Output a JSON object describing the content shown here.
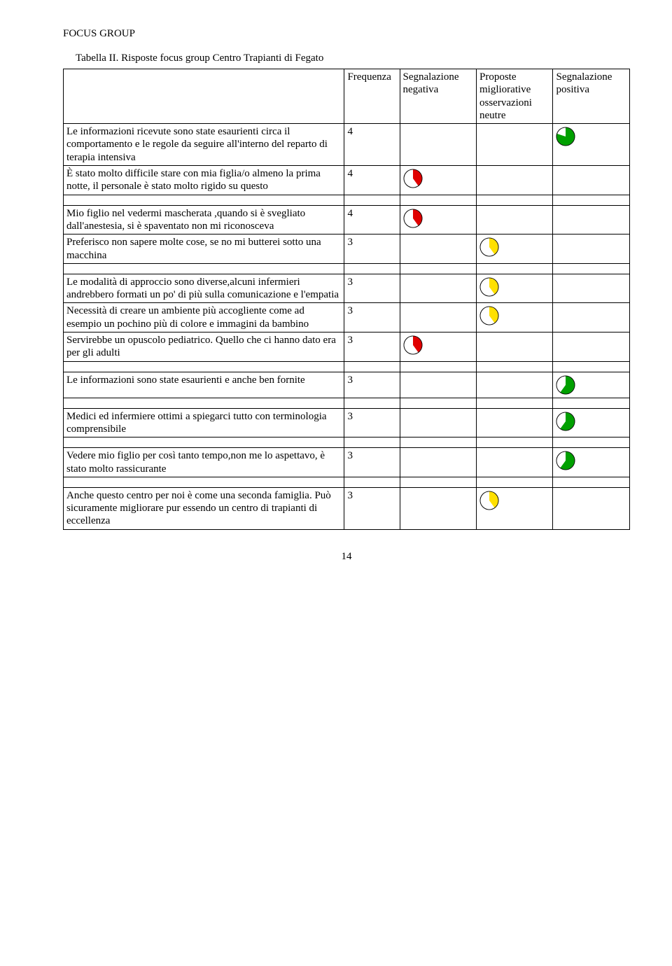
{
  "section_title": "FOCUS GROUP",
  "table_caption": "Tabella II. Risposte focus group Centro Trapianti di Fegato",
  "headers": {
    "freq": "Frequenza",
    "neg": "Segnalazione negativa",
    "prop": "Proposte migliorative osservazioni neutre",
    "pos": "Segnalazione positiva"
  },
  "pie_style": {
    "size": 28,
    "stroke": "#000000",
    "stroke_width": 0.8,
    "red": "#e00000",
    "yellow": "#ffe000",
    "green": "#00a000",
    "white": "#ffffff"
  },
  "groups": [
    {
      "rows": [
        {
          "statement": "Le informazioni ricevute sono state esaurienti circa il comportamento e le regole da seguire all'interno del reparto di terapia intensiva",
          "freq": "4",
          "neg": null,
          "prop": null,
          "pos": {
            "color": "green",
            "fraction": 0.8
          }
        },
        {
          "statement": "È stato molto difficile stare con mia figlia/o almeno la prima notte, il personale è stato molto rigido su questo",
          "freq": "4",
          "neg": {
            "color": "red",
            "fraction": 0.4
          },
          "prop": null,
          "pos": null
        }
      ]
    },
    {
      "rows": [
        {
          "statement": "Mio figlio nel vedermi mascherata ,quando si è svegliato dall'anestesia, si è spaventato non mi riconosceva",
          "freq": "4",
          "neg": {
            "color": "red",
            "fraction": 0.4
          },
          "prop": null,
          "pos": null
        },
        {
          "statement": "Preferisco non sapere molte cose, se no mi butterei sotto una macchina",
          "freq": "3",
          "neg": null,
          "prop": {
            "color": "yellow",
            "fraction": 0.4
          },
          "pos": null
        }
      ]
    },
    {
      "rows": [
        {
          "statement": "Le modalità di approccio sono diverse,alcuni infermieri andrebbero formati un po' di più sulla comunicazione e l'empatia",
          "freq": "3",
          "neg": null,
          "prop": {
            "color": "yellow",
            "fraction": 0.4
          },
          "pos": null
        },
        {
          "statement": "Necessità di creare un ambiente più accogliente come ad esempio un pochino più di colore e immagini da bambino",
          "freq": "3",
          "neg": null,
          "prop": {
            "color": "yellow",
            "fraction": 0.4
          },
          "pos": null
        },
        {
          "statement": "Servirebbe un opuscolo pediatrico. Quello che ci hanno dato era per gli adulti",
          "freq": "3",
          "neg": {
            "color": "red",
            "fraction": 0.4
          },
          "prop": null,
          "pos": null
        }
      ]
    },
    {
      "rows": [
        {
          "statement": "Le informazioni sono state esaurienti e anche ben fornite",
          "freq": "3",
          "neg": null,
          "prop": null,
          "pos": {
            "color": "green",
            "fraction": 0.6
          }
        }
      ]
    },
    {
      "rows": [
        {
          "statement": "Medici ed infermiere ottimi a spiegarci tutto con terminologia comprensibile",
          "freq": "3",
          "neg": null,
          "prop": null,
          "pos": {
            "color": "green",
            "fraction": 0.6
          }
        }
      ]
    },
    {
      "rows": [
        {
          "statement": "Vedere mio figlio per così tanto tempo,non me lo aspettavo, è stato molto rassicurante",
          "freq": "3",
          "neg": null,
          "prop": null,
          "pos": {
            "color": "green",
            "fraction": 0.6
          }
        }
      ]
    },
    {
      "rows": [
        {
          "statement": "Anche questo centro per noi è come una seconda famiglia. Può sicuramente migliorare pur essendo un centro di trapianti di eccellenza",
          "freq": "3",
          "neg": null,
          "prop": {
            "color": "yellow",
            "fraction": 0.4
          },
          "pos": null
        }
      ]
    }
  ],
  "page_number": "14"
}
